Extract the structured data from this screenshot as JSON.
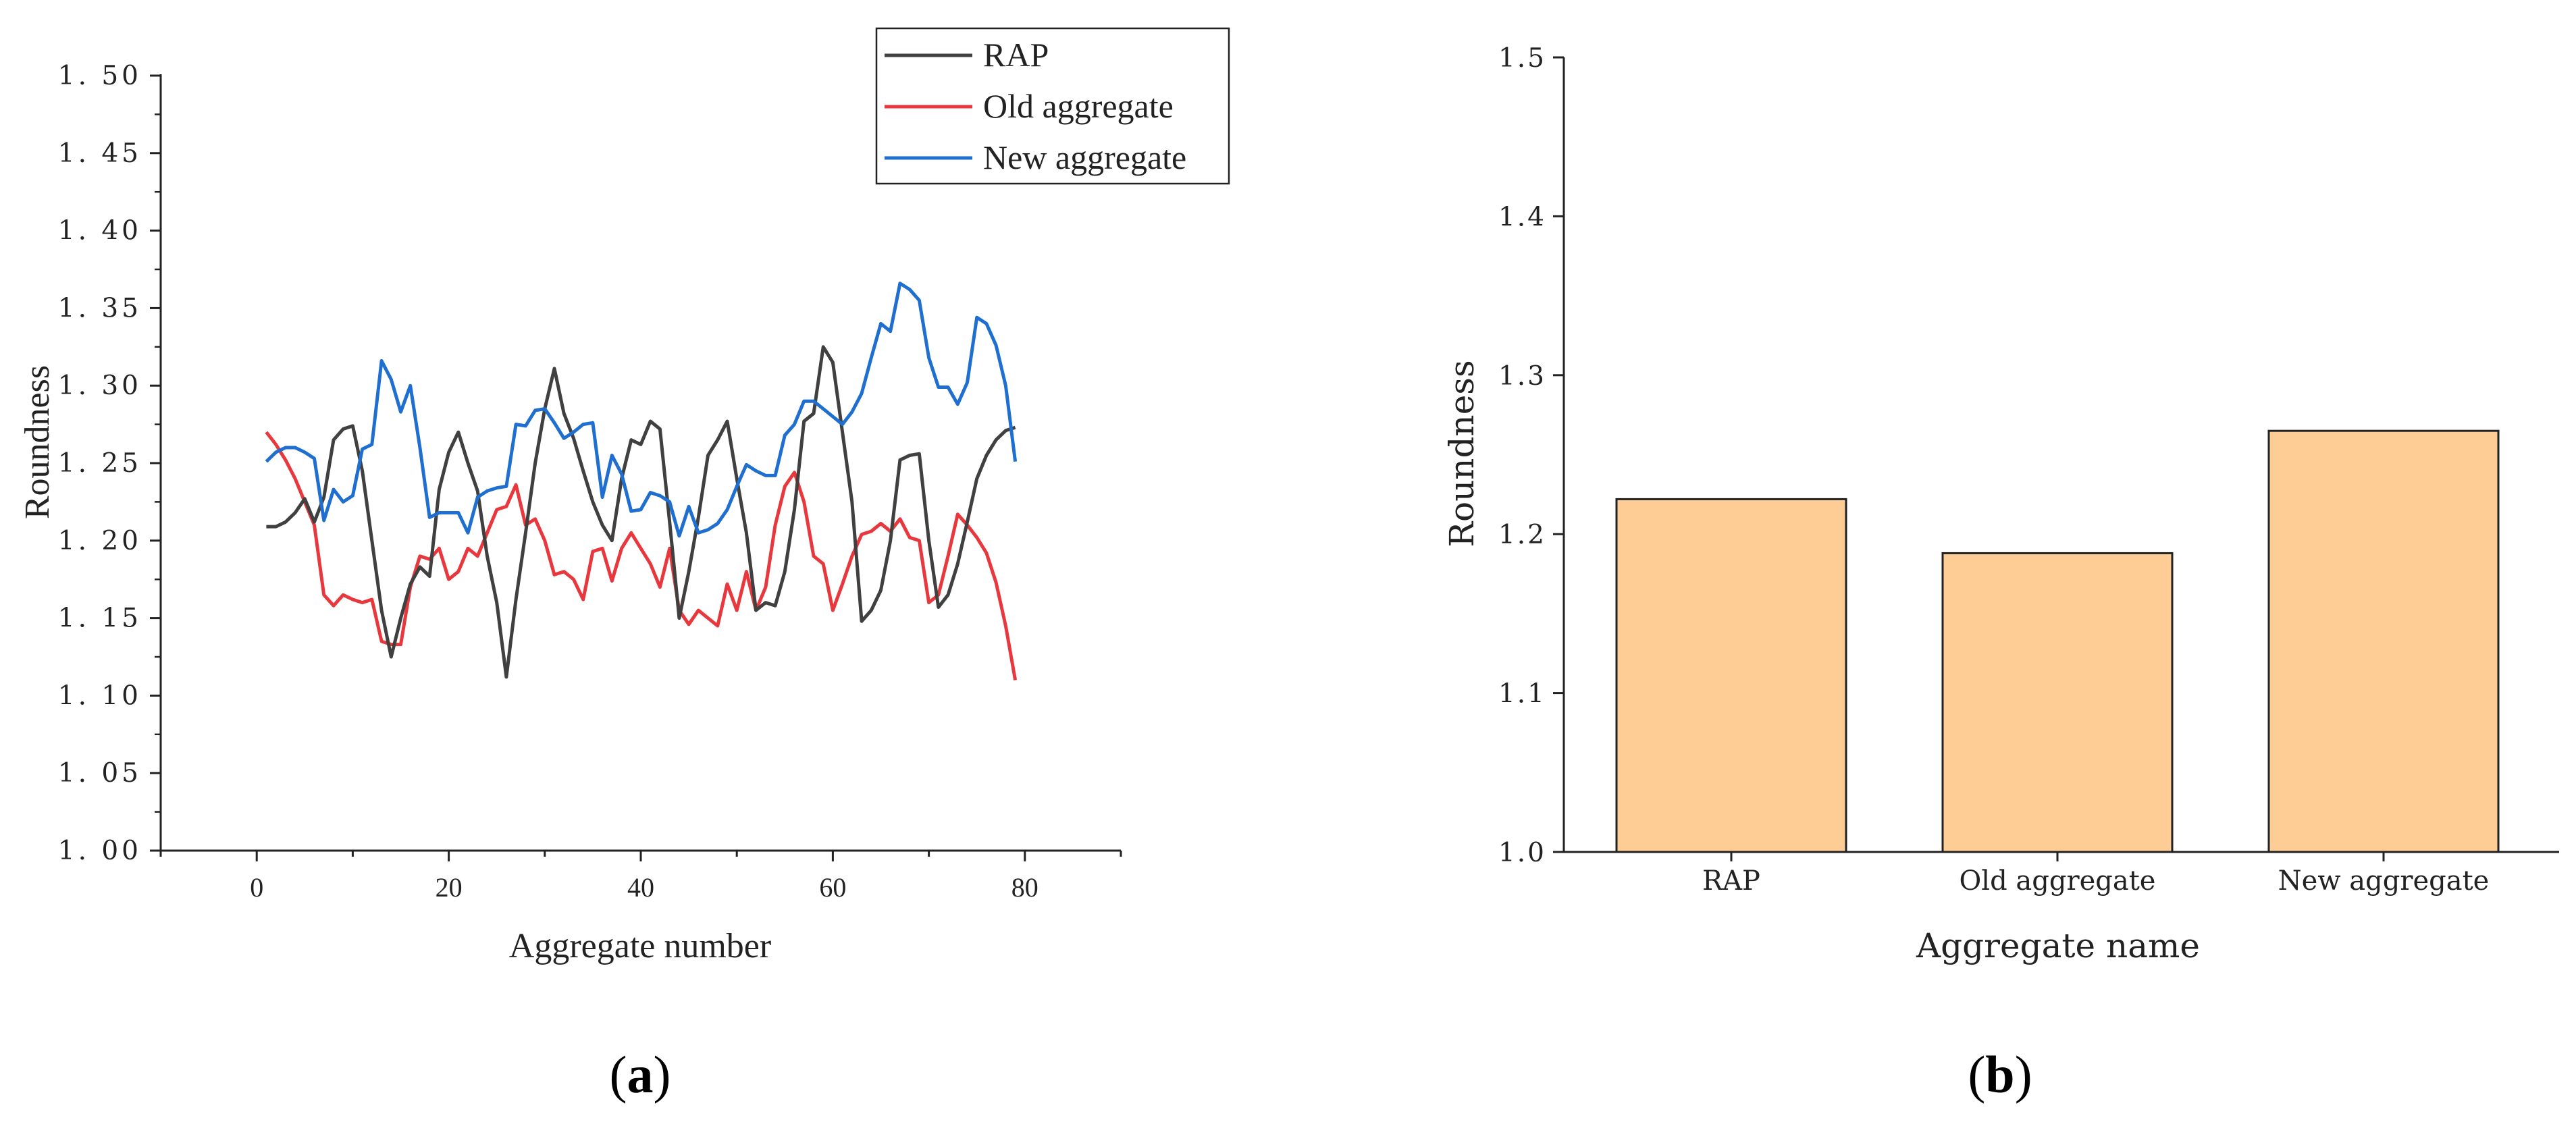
{
  "chart_data": [
    {
      "panel": "(a)",
      "type": "line",
      "title": "",
      "xlabel": "Aggregate number",
      "ylabel": "Roundness",
      "xlim": [
        -10,
        90
      ],
      "ylim": [
        1.0,
        1.5
      ],
      "xticks": [
        "0",
        "20",
        "40",
        "60",
        "80"
      ],
      "xtick_values": [
        0,
        20,
        40,
        60,
        80
      ],
      "yticks": [
        "1. 00",
        "1. 05",
        "1. 10",
        "1. 15",
        "1. 20",
        "1. 25",
        "1. 30",
        "1. 35",
        "1. 40",
        "1. 45",
        "1. 50"
      ],
      "ytick_values": [
        1.0,
        1.05,
        1.1,
        1.15,
        1.2,
        1.25,
        1.3,
        1.35,
        1.4,
        1.45,
        1.5
      ],
      "legend_position": "top-right",
      "x": [
        1,
        2,
        3,
        4,
        5,
        6,
        7,
        8,
        9,
        10,
        11,
        12,
        13,
        14,
        15,
        16,
        17,
        18,
        19,
        20,
        21,
        22,
        23,
        24,
        25,
        26,
        27,
        28,
        29,
        30,
        31,
        32,
        33,
        34,
        35,
        36,
        37,
        38,
        39,
        40,
        41,
        42,
        43,
        44,
        45,
        46,
        47,
        48,
        49,
        50,
        51,
        52,
        53,
        54,
        55,
        56,
        57,
        58,
        59,
        60,
        61,
        62,
        63,
        64,
        65,
        66,
        67,
        68,
        69,
        70,
        71,
        72,
        73,
        74,
        75,
        76,
        77,
        78,
        79
      ],
      "series": [
        {
          "name": "RAP",
          "color": "#404040",
          "values": [
            1.209,
            1.209,
            1.212,
            1.218,
            1.227,
            1.212,
            1.228,
            1.265,
            1.272,
            1.274,
            1.245,
            1.2,
            1.155,
            1.125,
            1.15,
            1.172,
            1.183,
            1.177,
            1.233,
            1.257,
            1.27,
            1.25,
            1.232,
            1.19,
            1.16,
            1.112,
            1.162,
            1.205,
            1.25,
            1.285,
            1.311,
            1.282,
            1.266,
            1.245,
            1.225,
            1.21,
            1.2,
            1.24,
            1.265,
            1.262,
            1.277,
            1.272,
            1.212,
            1.15,
            1.18,
            1.215,
            1.255,
            1.265,
            1.277,
            1.24,
            1.205,
            1.155,
            1.16,
            1.158,
            1.18,
            1.22,
            1.277,
            1.282,
            1.325,
            1.315,
            1.27,
            1.225,
            1.148,
            1.155,
            1.168,
            1.2,
            1.252,
            1.255,
            1.256,
            1.2,
            1.157,
            1.165,
            1.185,
            1.212,
            1.24,
            1.255,
            1.265,
            1.271,
            1.273
          ]
        },
        {
          "name": "Old aggregate",
          "color": "#e8383d",
          "values": [
            1.27,
            1.262,
            1.252,
            1.24,
            1.225,
            1.21,
            1.165,
            1.158,
            1.165,
            1.162,
            1.16,
            1.162,
            1.135,
            1.133,
            1.133,
            1.17,
            1.19,
            1.188,
            1.195,
            1.175,
            1.18,
            1.195,
            1.19,
            1.205,
            1.22,
            1.222,
            1.236,
            1.21,
            1.214,
            1.2,
            1.178,
            1.18,
            1.175,
            1.162,
            1.193,
            1.195,
            1.174,
            1.195,
            1.205,
            1.195,
            1.185,
            1.17,
            1.195,
            1.155,
            1.146,
            1.155,
            1.15,
            1.145,
            1.172,
            1.155,
            1.18,
            1.155,
            1.17,
            1.21,
            1.235,
            1.244,
            1.225,
            1.19,
            1.185,
            1.155,
            1.172,
            1.19,
            1.204,
            1.206,
            1.211,
            1.206,
            1.214,
            1.202,
            1.2,
            1.16,
            1.165,
            1.19,
            1.217,
            1.21,
            1.202,
            1.192,
            1.173,
            1.145,
            1.11
          ]
        },
        {
          "name": "New aggregate",
          "color": "#1f6fd1",
          "values": [
            1.251,
            1.257,
            1.26,
            1.26,
            1.257,
            1.253,
            1.213,
            1.233,
            1.225,
            1.229,
            1.259,
            1.262,
            1.316,
            1.304,
            1.283,
            1.3,
            1.26,
            1.215,
            1.218,
            1.218,
            1.218,
            1.205,
            1.228,
            1.232,
            1.234,
            1.235,
            1.275,
            1.274,
            1.284,
            1.285,
            1.276,
            1.266,
            1.27,
            1.275,
            1.276,
            1.228,
            1.255,
            1.243,
            1.219,
            1.22,
            1.231,
            1.229,
            1.225,
            1.203,
            1.222,
            1.205,
            1.207,
            1.211,
            1.22,
            1.235,
            1.249,
            1.245,
            1.242,
            1.242,
            1.268,
            1.275,
            1.29,
            1.29,
            1.285,
            1.28,
            1.275,
            1.283,
            1.295,
            1.318,
            1.34,
            1.335,
            1.366,
            1.362,
            1.355,
            1.318,
            1.299,
            1.299,
            1.288,
            1.302,
            1.344,
            1.34,
            1.326,
            1.3,
            1.251
          ]
        }
      ]
    },
    {
      "panel": "(b)",
      "type": "bar",
      "title": "",
      "xlabel": "Aggregate name",
      "ylabel": "Roundness",
      "categories": [
        "RAP",
        "Old aggregate",
        "New aggregate"
      ],
      "values": [
        1.222,
        1.188,
        1.265
      ],
      "ylim": [
        1.0,
        1.5
      ],
      "yticks": [
        "1.0",
        "1.1",
        "1.2",
        "1.3",
        "1.4",
        "1.5"
      ],
      "ytick_values": [
        1.0,
        1.1,
        1.2,
        1.3,
        1.4,
        1.5
      ],
      "bar_color": "#fdcd95",
      "bar_edge_color": "#222222"
    }
  ],
  "labels": {
    "panel_a_open": "(",
    "panel_a_letter": "a",
    "panel_a_close": ")",
    "panel_b_open": "(",
    "panel_b_letter": "b",
    "panel_b_close": ")"
  }
}
